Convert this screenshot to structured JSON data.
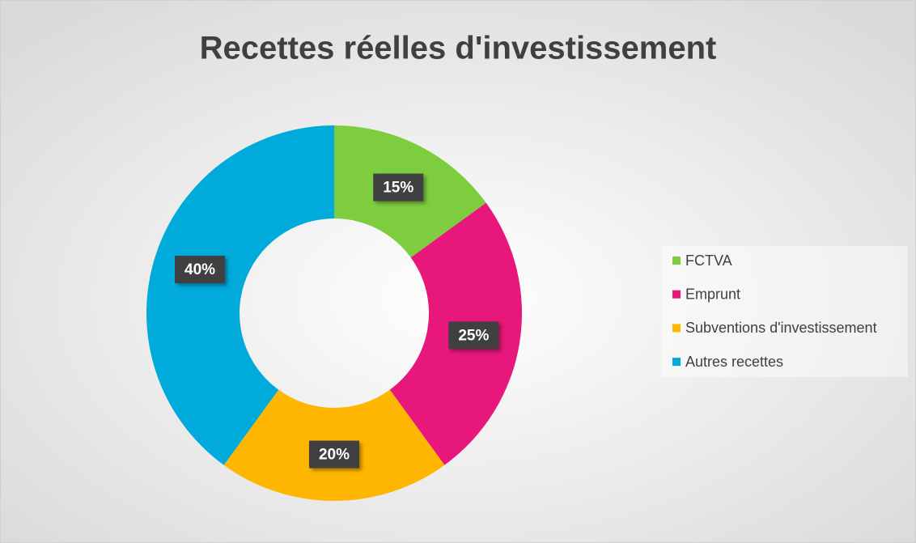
{
  "chart_data": {
    "type": "donut",
    "title": "Recettes réelles d'investissement",
    "categories": [
      "FCTVA",
      "Emprunt",
      "Subventions d'investissement",
      "Autres recettes"
    ],
    "values": [
      15,
      25,
      20,
      40
    ],
    "value_labels": [
      "15%",
      "25%",
      "20%",
      "40%"
    ],
    "colors": [
      "#7dcd3e",
      "#e8177b",
      "#ffb600",
      "#00aadb"
    ],
    "legend": "right"
  }
}
